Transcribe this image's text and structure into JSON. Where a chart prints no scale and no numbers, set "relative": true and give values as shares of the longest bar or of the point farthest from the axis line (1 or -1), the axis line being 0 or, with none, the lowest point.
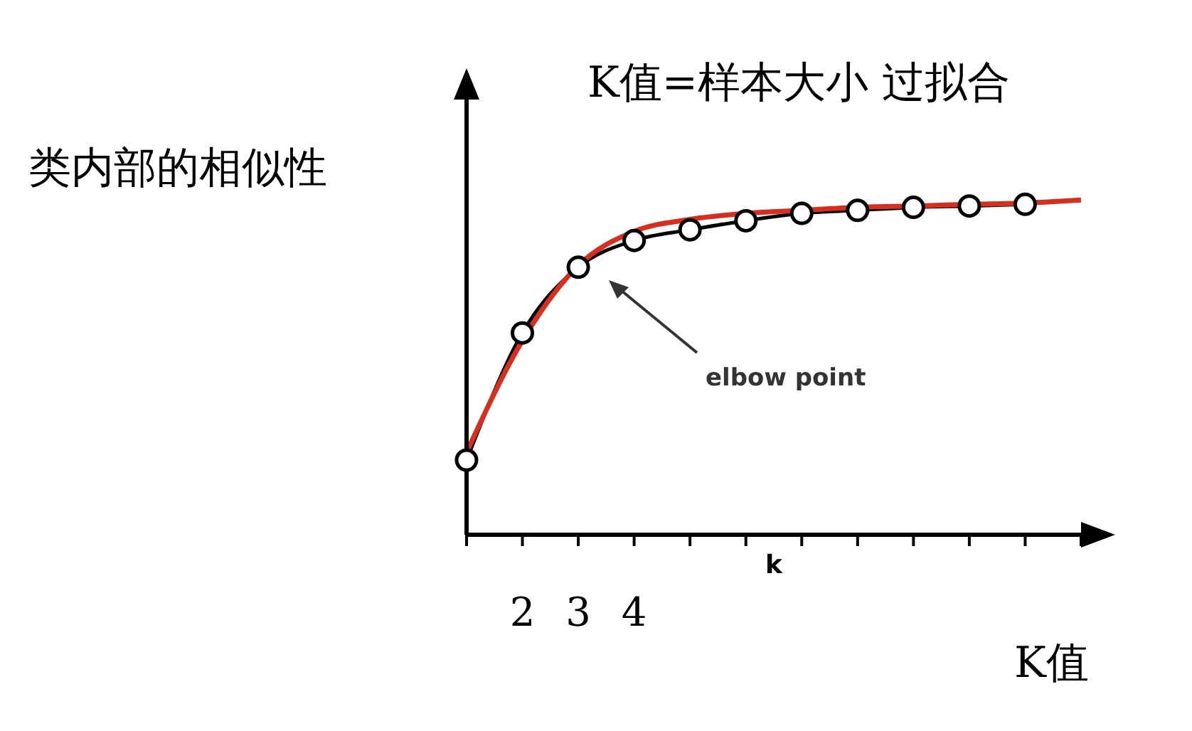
{
  "chart_data": {
    "type": "line",
    "relative": true,
    "ylabel": "类内部的相似性",
    "xlabel": "k",
    "categories": [
      null,
      "2",
      "3",
      "4",
      null,
      null,
      null,
      null,
      null,
      null,
      null,
      null
    ],
    "series": [
      {
        "color": "#000000",
        "marker": "circle",
        "values": [
          0.223,
          0.603,
          0.799,
          0.879,
          0.911,
          0.938,
          0.96,
          0.969,
          0.978,
          0.982,
          0.987,
          null
        ]
      },
      {
        "color": "#d62f1f",
        "marker": "none",
        "values": [
          0.246,
          0.58,
          0.804,
          0.906,
          0.942,
          0.96,
          0.969,
          0.978,
          0.982,
          0.987,
          0.991,
          1
        ]
      }
    ],
    "annotations": [
      "K值=样本大小 过拟合",
      "elbow point",
      "K值"
    ],
    "line_style": "solid",
    "grid": false,
    "legend": false
  }
}
